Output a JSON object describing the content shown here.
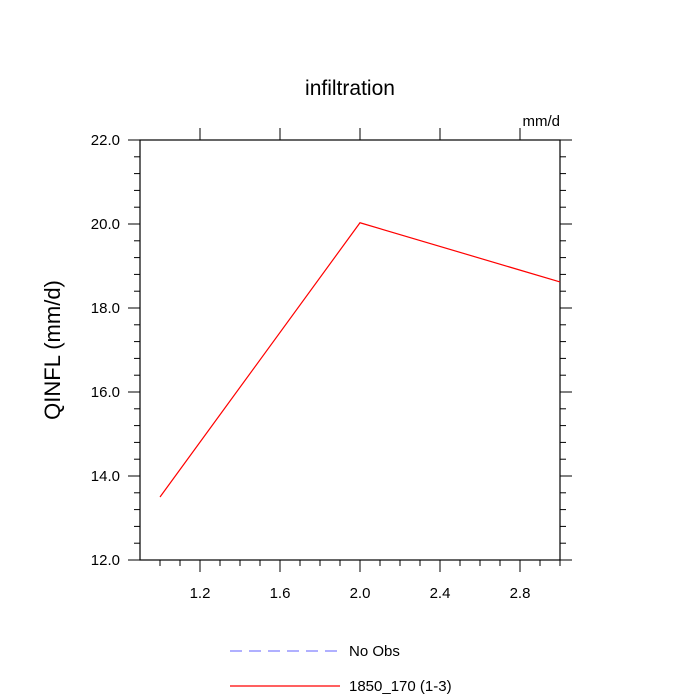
{
  "chart_data": {
    "type": "line",
    "title": "infiltration",
    "units_label": "mm/d",
    "ylabel": "QINFL  (mm/d)",
    "xlabel": "",
    "xlim": [
      0.9,
      3.0
    ],
    "ylim": [
      12.0,
      22.0
    ],
    "x_ticks": [
      1.2,
      1.6,
      2.0,
      2.4,
      2.8
    ],
    "x_tick_labels": [
      "1.2",
      "1.6",
      "2.0",
      "2.4",
      "2.8"
    ],
    "y_ticks": [
      12.0,
      14.0,
      16.0,
      18.0,
      20.0,
      22.0
    ],
    "y_tick_labels": [
      "12.0",
      "14.0",
      "16.0",
      "18.0",
      "20.0",
      "22.0"
    ],
    "grid": false,
    "legend_position": "bottom-center",
    "series": [
      {
        "name": "No Obs",
        "color": "#8080ff",
        "style": "dashed",
        "x": [],
        "y": []
      },
      {
        "name": "1850_170 (1-3)",
        "color": "#ff0000",
        "style": "solid",
        "x": [
          1.0,
          2.0,
          3.0
        ],
        "y": [
          13.5,
          20.03,
          18.62
        ]
      }
    ]
  }
}
